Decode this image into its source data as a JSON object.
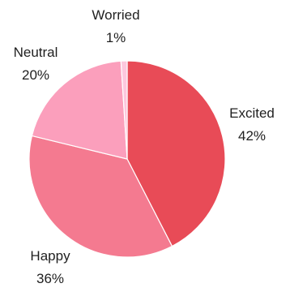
{
  "chart_data": {
    "type": "pie",
    "categories": [
      "Excited",
      "Happy",
      "Neutral",
      "Worried"
    ],
    "values": [
      42,
      36,
      20,
      1
    ],
    "value_labels": [
      "42%",
      "36%",
      "20%",
      "1%"
    ],
    "colors": [
      "#e84b57",
      "#f47a90",
      "#fb9fbc",
      "#fdc7dd"
    ],
    "legend": "none"
  }
}
